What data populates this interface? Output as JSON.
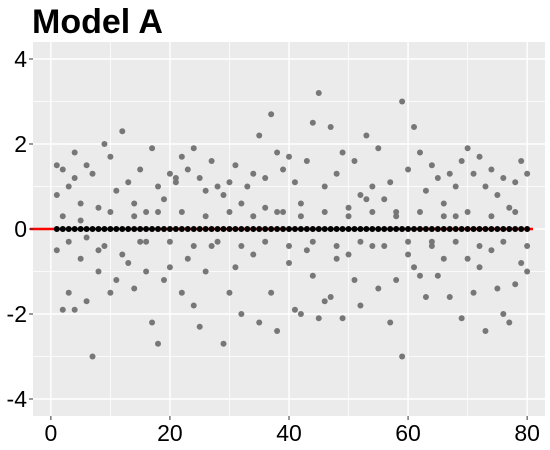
{
  "chart_data": {
    "type": "scatter",
    "title": "Model A",
    "xlabel": "",
    "ylabel": "",
    "xlim": [
      -3,
      83
    ],
    "ylim": [
      -4.4,
      4.4
    ],
    "x_ticks": [
      0,
      20,
      40,
      60,
      80
    ],
    "y_ticks": [
      -4,
      -2,
      0,
      2,
      4
    ],
    "grid": true,
    "background": "#EBEBEB",
    "grid_color": "#FFFFFF",
    "reference_line": {
      "y": 0,
      "color": "#FF0000"
    },
    "point_colors": [
      "#111111",
      "#333333",
      "#555555",
      "#777777",
      "#999999",
      "#BBBBBB",
      "#CCCCCC"
    ],
    "baseline_points": {
      "y": 0,
      "x_start": 1,
      "x_end": 80,
      "color": "#000000"
    },
    "series": [
      {
        "points": [
          [
            1,
            1.5
          ],
          [
            1,
            0.8
          ],
          [
            1,
            -0.5
          ],
          [
            2,
            1.4
          ],
          [
            2,
            -1.9
          ],
          [
            3,
            1.0
          ],
          [
            3,
            -1.5
          ],
          [
            4,
            1.8
          ],
          [
            4,
            -1.9
          ],
          [
            4,
            1.2
          ],
          [
            5,
            -0.7
          ],
          [
            5,
            0.6
          ],
          [
            6,
            1.5
          ],
          [
            6,
            -1.7
          ],
          [
            7,
            -3.0
          ],
          [
            7,
            1.3
          ],
          [
            8,
            0.5
          ],
          [
            8,
            -1.0
          ],
          [
            9,
            2.0
          ],
          [
            9,
            -0.4
          ],
          [
            10,
            1.7
          ],
          [
            10,
            -1.5
          ],
          [
            11,
            0.9
          ],
          [
            11,
            -1.2
          ],
          [
            12,
            2.3
          ],
          [
            13,
            1.1
          ],
          [
            13,
            -0.8
          ],
          [
            14,
            0.6
          ],
          [
            14,
            -1.4
          ],
          [
            15,
            1.4
          ],
          [
            15,
            -0.3
          ],
          [
            16,
            0.4
          ],
          [
            16,
            -1.0
          ],
          [
            17,
            1.9
          ],
          [
            17,
            -2.2
          ],
          [
            18,
            1.0
          ],
          [
            18,
            -2.7
          ],
          [
            19,
            -1.2
          ],
          [
            19,
            0.7
          ],
          [
            20,
            1.3
          ],
          [
            20,
            -0.9
          ],
          [
            21,
            1.2
          ],
          [
            21,
            1.1
          ],
          [
            22,
            1.7
          ],
          [
            22,
            -1.5
          ],
          [
            23,
            1.4
          ],
          [
            23,
            -0.7
          ],
          [
            24,
            1.9
          ],
          [
            24,
            -1.8
          ],
          [
            25,
            1.2
          ],
          [
            25,
            -2.3
          ],
          [
            26,
            0.9
          ],
          [
            26,
            -1.0
          ],
          [
            27,
            1.6
          ],
          [
            27,
            -0.4
          ],
          [
            28,
            1.0
          ],
          [
            29,
            -2.7
          ],
          [
            29,
            0.8
          ],
          [
            30,
            1.1
          ],
          [
            30,
            -1.5
          ],
          [
            31,
            1.5
          ],
          [
            31,
            -0.9
          ],
          [
            32,
            0.6
          ],
          [
            32,
            -2.0
          ],
          [
            33,
            1.0
          ],
          [
            34,
            1.3
          ],
          [
            34,
            -0.6
          ],
          [
            35,
            2.2
          ],
          [
            35,
            -2.2
          ],
          [
            36,
            1.2
          ],
          [
            36,
            0.5
          ],
          [
            37,
            2.7
          ],
          [
            37,
            -1.5
          ],
          [
            38,
            1.8
          ],
          [
            38,
            -2.4
          ],
          [
            39,
            1.4
          ],
          [
            39,
            0.4
          ],
          [
            40,
            1.7
          ],
          [
            40,
            -0.8
          ],
          [
            41,
            1.1
          ],
          [
            41,
            -1.9
          ],
          [
            42,
            0.6
          ],
          [
            42,
            -2.0
          ],
          [
            43,
            1.6
          ],
          [
            43,
            -0.5
          ],
          [
            44,
            2.5
          ],
          [
            44,
            -1.1
          ],
          [
            45,
            3.2
          ],
          [
            45,
            -2.1
          ],
          [
            46,
            1.0
          ],
          [
            46,
            -1.7
          ],
          [
            47,
            2.4
          ],
          [
            47,
            -1.6
          ],
          [
            48,
            1.3
          ],
          [
            48,
            -0.7
          ],
          [
            49,
            1.8
          ],
          [
            49,
            -2.1
          ],
          [
            50,
            0.5
          ],
          [
            50,
            -0.6
          ],
          [
            51,
            1.6
          ],
          [
            51,
            -1.2
          ],
          [
            52,
            0.8
          ],
          [
            52,
            -1.8
          ],
          [
            53,
            2.2
          ],
          [
            53,
            0.7
          ],
          [
            54,
            1.0
          ],
          [
            54,
            -0.4
          ],
          [
            55,
            1.9
          ],
          [
            55,
            -1.4
          ],
          [
            56,
            0.7
          ],
          [
            57,
            -2.2
          ],
          [
            57,
            1.1
          ],
          [
            58,
            0.4
          ],
          [
            58,
            -1.2
          ],
          [
            59,
            3.0
          ],
          [
            59,
            -3.0
          ],
          [
            60,
            1.4
          ],
          [
            60,
            -0.6
          ],
          [
            61,
            2.4
          ],
          [
            61,
            -0.9
          ],
          [
            62,
            1.8
          ],
          [
            62,
            -1.1
          ],
          [
            63,
            0.9
          ],
          [
            63,
            -1.6
          ],
          [
            64,
            1.5
          ],
          [
            64,
            -0.3
          ],
          [
            65,
            1.2
          ],
          [
            65,
            -1.1
          ],
          [
            66,
            0.6
          ],
          [
            66,
            -0.7
          ],
          [
            67,
            1.3
          ],
          [
            67,
            -1.6
          ],
          [
            68,
            1.0
          ],
          [
            68,
            0.3
          ],
          [
            69,
            1.6
          ],
          [
            69,
            -2.1
          ],
          [
            70,
            1.9
          ],
          [
            70,
            -0.7
          ],
          [
            71,
            1.3
          ],
          [
            71,
            -1.5
          ],
          [
            72,
            1.7
          ],
          [
            72,
            -0.9
          ],
          [
            73,
            1.0
          ],
          [
            73,
            -2.4
          ],
          [
            74,
            1.4
          ],
          [
            74,
            -0.5
          ],
          [
            75,
            0.8
          ],
          [
            75,
            -1.4
          ],
          [
            76,
            1.2
          ],
          [
            76,
            -2.0
          ],
          [
            77,
            0.5
          ],
          [
            77,
            -2.2
          ],
          [
            78,
            1.1
          ],
          [
            78,
            -1.3
          ],
          [
            79,
            1.6
          ],
          [
            79,
            -0.8
          ],
          [
            80,
            1.3
          ],
          [
            80,
            -1.0
          ],
          [
            2,
            0.3
          ],
          [
            3,
            -0.3
          ],
          [
            5,
            0.2
          ],
          [
            6,
            -0.2
          ],
          [
            8,
            -0.5
          ],
          [
            10,
            0.4
          ],
          [
            12,
            -0.6
          ],
          [
            14,
            0.3
          ],
          [
            16,
            -0.3
          ],
          [
            18,
            0.4
          ],
          [
            20,
            -0.3
          ],
          [
            22,
            0.4
          ],
          [
            24,
            -0.4
          ],
          [
            26,
            0.3
          ],
          [
            28,
            -0.3
          ],
          [
            30,
            0.4
          ],
          [
            32,
            -0.4
          ],
          [
            34,
            0.3
          ],
          [
            36,
            -0.3
          ],
          [
            38,
            0.4
          ],
          [
            40,
            -0.4
          ],
          [
            42,
            0.3
          ],
          [
            44,
            -0.3
          ],
          [
            46,
            0.4
          ],
          [
            48,
            -0.4
          ],
          [
            50,
            0.3
          ],
          [
            52,
            -0.3
          ],
          [
            54,
            0.4
          ],
          [
            56,
            -0.4
          ],
          [
            58,
            0.3
          ],
          [
            60,
            -0.3
          ],
          [
            62,
            0.4
          ],
          [
            64,
            -0.4
          ],
          [
            66,
            0.3
          ],
          [
            68,
            -0.3
          ],
          [
            70,
            0.4
          ],
          [
            72,
            -0.4
          ],
          [
            74,
            0.3
          ],
          [
            76,
            -0.3
          ],
          [
            78,
            0.4
          ],
          [
            80,
            -0.4
          ]
        ]
      }
    ]
  }
}
